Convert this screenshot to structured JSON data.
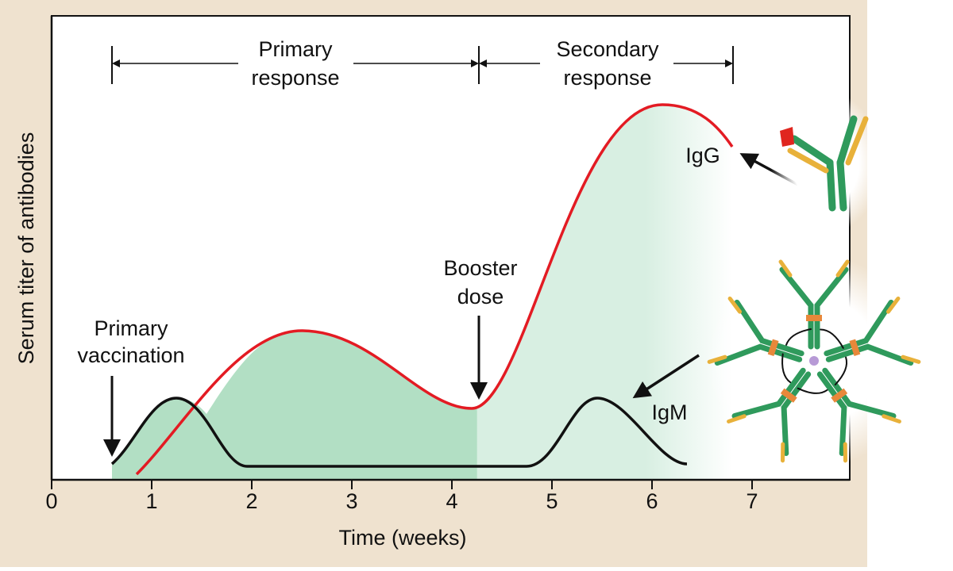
{
  "axis": {
    "x_label": "Time (weeks)",
    "y_label": "Serum titer of antibodies",
    "x_ticks": [
      0,
      1,
      2,
      3,
      4,
      5,
      6,
      7
    ]
  },
  "phases": {
    "primary": [
      "Primary",
      "response"
    ],
    "secondary": [
      "Secondary",
      "response"
    ]
  },
  "events": {
    "primary_vaccination": [
      "Primary",
      "vaccination"
    ],
    "booster": [
      "Booster",
      "dose"
    ]
  },
  "antibodies": {
    "igg": "IgG",
    "igm": "IgM"
  }
}
